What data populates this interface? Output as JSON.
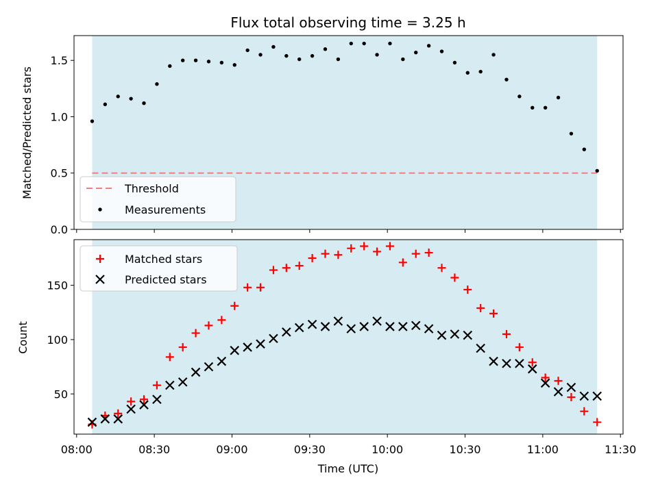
{
  "chart_data": {
    "title": "Flux total observing time = 3.25 h",
    "xlabel": "Time (UTC)",
    "x_ticks": [
      "08:00",
      "08:30",
      "09:00",
      "09:30",
      "10:00",
      "10:30",
      "11:00",
      "11:30"
    ],
    "x_tick_values": [
      "08:00",
      "08:30",
      "09:00",
      "09:30",
      "10:00",
      "10:30",
      "11:00",
      "11:30"
    ],
    "xlim": [
      "07:59",
      "11:31"
    ],
    "observing_window": [
      "08:06",
      "11:21"
    ],
    "observing_window_color": "#add8e6",
    "times": [
      "08:06",
      "08:11",
      "08:16",
      "08:21",
      "08:26",
      "08:31",
      "08:36",
      "08:41",
      "08:46",
      "08:51",
      "08:56",
      "09:01",
      "09:06",
      "09:11",
      "09:16",
      "09:21",
      "09:26",
      "09:31",
      "09:36",
      "09:41",
      "09:46",
      "09:51",
      "09:56",
      "10:01",
      "10:06",
      "10:11",
      "10:16",
      "10:21",
      "10:26",
      "10:31",
      "10:36",
      "10:41",
      "10:46",
      "10:51",
      "10:56",
      "11:01",
      "11:06",
      "11:11",
      "11:16",
      "11:21"
    ],
    "panels": [
      {
        "type": "scatter",
        "ylabel": "Matched/Predicted stars",
        "ylim": [
          0,
          1.72
        ],
        "y_ticks": [
          "0.0",
          "0.5",
          "1.0",
          "1.5"
        ],
        "y_tick_values": [
          0,
          0.5,
          1.0,
          1.5
        ],
        "threshold": {
          "name": "Threshold",
          "value": 0.5,
          "color": "#f08080",
          "style": "dashed"
        },
        "series": [
          {
            "name": "Measurements",
            "marker": "dot",
            "color": "#000000",
            "values": [
              0.96,
              1.11,
              1.18,
              1.16,
              1.12,
              1.29,
              1.45,
              1.5,
              1.5,
              1.49,
              1.48,
              1.46,
              1.59,
              1.55,
              1.62,
              1.54,
              1.51,
              1.54,
              1.6,
              1.51,
              1.65,
              1.65,
              1.55,
              1.65,
              1.51,
              1.57,
              1.63,
              1.58,
              1.48,
              1.39,
              1.4,
              1.55,
              1.33,
              1.18,
              1.08,
              1.08,
              1.17,
              0.85,
              0.71,
              0.52
            ]
          }
        ],
        "legend_position": "lower-left"
      },
      {
        "type": "scatter",
        "ylabel": "Count",
        "ylim": [
          13,
          192
        ],
        "y_ticks": [
          "50",
          "100",
          "150"
        ],
        "y_tick_values": [
          50,
          100,
          150
        ],
        "series": [
          {
            "name": "Matched stars",
            "marker": "plus",
            "color": "#ff0000",
            "values": [
              22,
              30,
              32,
              43,
              45,
              58,
              84,
              93,
              106,
              113,
              118,
              131,
              148,
              148,
              164,
              166,
              168,
              175,
              179,
              178,
              184,
              186,
              181,
              186,
              171,
              179,
              180,
              166,
              157,
              146,
              129,
              124,
              105,
              93,
              79,
              65,
              62,
              47,
              34,
              24
            ]
          },
          {
            "name": "Predicted stars",
            "marker": "x",
            "color": "#000000",
            "values": [
              24,
              27,
              27,
              36,
              40,
              45,
              58,
              61,
              70,
              75,
              80,
              90,
              93,
              96,
              101,
              107,
              111,
              114,
              112,
              117,
              110,
              112,
              117,
              112,
              112,
              113,
              110,
              104,
              105,
              104,
              92,
              80,
              78,
              78,
              73,
              60,
              52,
              56,
              48,
              48
            ]
          }
        ],
        "legend_position": "upper-left"
      }
    ]
  }
}
